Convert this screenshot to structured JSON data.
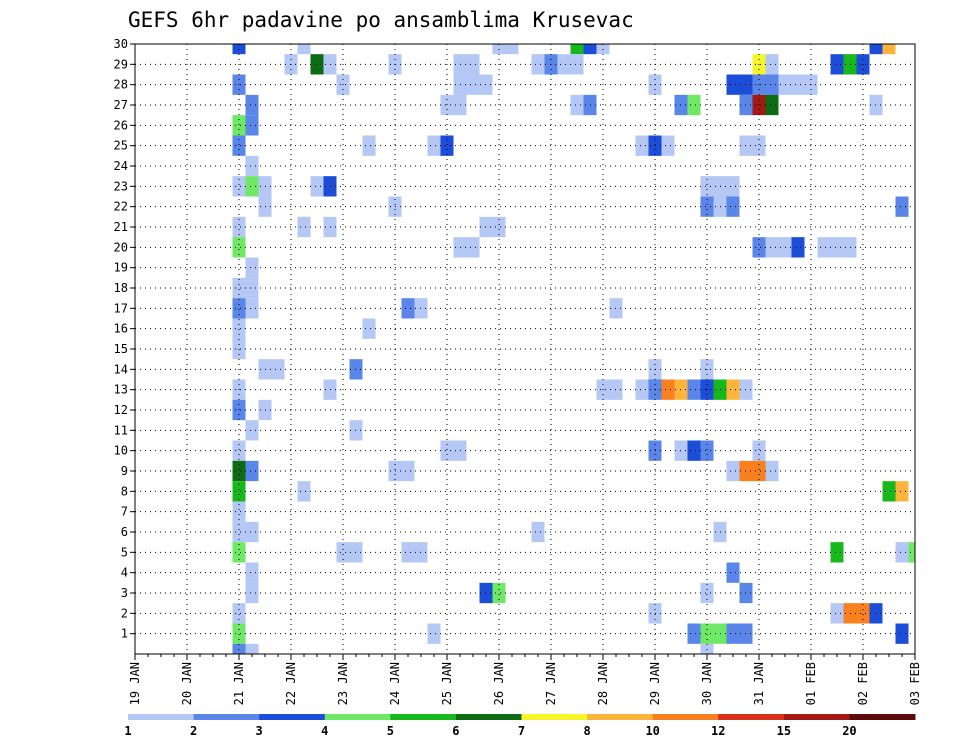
{
  "chart_data": {
    "type": "heatmap",
    "title": "GEFS 6hr padavine po ansamblima Krusevac",
    "xlabel": "",
    "ylabel": "",
    "y_ticks": [
      1,
      2,
      3,
      4,
      5,
      6,
      7,
      8,
      9,
      10,
      11,
      12,
      13,
      14,
      15,
      16,
      17,
      18,
      19,
      20,
      21,
      22,
      23,
      24,
      25,
      26,
      27,
      28,
      29,
      30
    ],
    "ylim": [
      0,
      30
    ],
    "x_ticks": [
      "19 JAN",
      "20 JAN",
      "21 JAN",
      "22 JAN",
      "23 JAN",
      "24 JAN",
      "25 JAN",
      "26 JAN",
      "27 JAN",
      "28 JAN",
      "29 JAN",
      "30 JAN",
      "31 JAN",
      "01 FEB",
      "02 FEB",
      "03 FEB"
    ],
    "x_unit": "6-hour step starting 19 JAN 00Z",
    "xlim": [
      0,
      60
    ],
    "grid": true,
    "colorbar": {
      "placement": "bottom",
      "labels": [
        "1",
        "2",
        "3",
        "4",
        "5",
        "6",
        "7",
        "8",
        "10",
        "12",
        "15",
        "20"
      ],
      "colors": [
        "#b4c7f5",
        "#5b86e9",
        "#1c4dd8",
        "#6fe865",
        "#16b81c",
        "#0d6b14",
        "#f5f52a",
        "#fcb53a",
        "#f9801e",
        "#d8331a",
        "#a31a14",
        "#5c0a0a"
      ]
    },
    "cells": [
      {
        "x": 8,
        "y": 30,
        "c": 3
      },
      {
        "x": 13,
        "y": 30,
        "c": 1
      },
      {
        "x": 28,
        "y": 30,
        "c": 1
      },
      {
        "x": 29,
        "y": 30,
        "c": 1
      },
      {
        "x": 34,
        "y": 30,
        "c": 5
      },
      {
        "x": 35,
        "y": 30,
        "c": 3
      },
      {
        "x": 36,
        "y": 30,
        "c": 1
      },
      {
        "x": 57,
        "y": 30,
        "c": 3
      },
      {
        "x": 58,
        "y": 30,
        "c": 8
      },
      {
        "x": 12,
        "y": 29,
        "c": 1
      },
      {
        "x": 14,
        "y": 29,
        "c": 6
      },
      {
        "x": 15,
        "y": 29,
        "c": 1
      },
      {
        "x": 20,
        "y": 29,
        "c": 1
      },
      {
        "x": 25,
        "y": 29,
        "c": 1
      },
      {
        "x": 26,
        "y": 29,
        "c": 1
      },
      {
        "x": 31,
        "y": 29,
        "c": 1
      },
      {
        "x": 32,
        "y": 29,
        "c": 2
      },
      {
        "x": 33,
        "y": 29,
        "c": 1
      },
      {
        "x": 34,
        "y": 29,
        "c": 1
      },
      {
        "x": 48,
        "y": 29,
        "c": 7
      },
      {
        "x": 49,
        "y": 29,
        "c": 1
      },
      {
        "x": 54,
        "y": 29,
        "c": 3
      },
      {
        "x": 55,
        "y": 29,
        "c": 5
      },
      {
        "x": 56,
        "y": 29,
        "c": 3
      },
      {
        "x": 8,
        "y": 28,
        "c": 2
      },
      {
        "x": 16,
        "y": 28,
        "c": 1
      },
      {
        "x": 25,
        "y": 28,
        "c": 1
      },
      {
        "x": 26,
        "y": 28,
        "c": 1
      },
      {
        "x": 27,
        "y": 28,
        "c": 1
      },
      {
        "x": 40,
        "y": 28,
        "c": 1
      },
      {
        "x": 46,
        "y": 28,
        "c": 3
      },
      {
        "x": 47,
        "y": 28,
        "c": 3
      },
      {
        "x": 48,
        "y": 28,
        "c": 2
      },
      {
        "x": 49,
        "y": 28,
        "c": 2
      },
      {
        "x": 50,
        "y": 28,
        "c": 1
      },
      {
        "x": 51,
        "y": 28,
        "c": 1
      },
      {
        "x": 52,
        "y": 28,
        "c": 1
      },
      {
        "x": 9,
        "y": 27,
        "c": 2
      },
      {
        "x": 24,
        "y": 27,
        "c": 1
      },
      {
        "x": 25,
        "y": 27,
        "c": 1
      },
      {
        "x": 34,
        "y": 27,
        "c": 1
      },
      {
        "x": 35,
        "y": 27,
        "c": 2
      },
      {
        "x": 42,
        "y": 27,
        "c": 2
      },
      {
        "x": 43,
        "y": 27,
        "c": 4
      },
      {
        "x": 47,
        "y": 27,
        "c": 2
      },
      {
        "x": 48,
        "y": 27,
        "c": 11
      },
      {
        "x": 49,
        "y": 27,
        "c": 6
      },
      {
        "x": 57,
        "y": 27,
        "c": 1
      },
      {
        "x": 8,
        "y": 26,
        "c": 4
      },
      {
        "x": 9,
        "y": 26,
        "c": 2
      },
      {
        "x": 8,
        "y": 25,
        "c": 2
      },
      {
        "x": 18,
        "y": 25,
        "c": 1
      },
      {
        "x": 23,
        "y": 25,
        "c": 1
      },
      {
        "x": 24,
        "y": 25,
        "c": 3
      },
      {
        "x": 39,
        "y": 25,
        "c": 1
      },
      {
        "x": 40,
        "y": 25,
        "c": 3
      },
      {
        "x": 41,
        "y": 25,
        "c": 1
      },
      {
        "x": 47,
        "y": 25,
        "c": 1
      },
      {
        "x": 48,
        "y": 25,
        "c": 1
      },
      {
        "x": 9,
        "y": 24,
        "c": 1
      },
      {
        "x": 8,
        "y": 23,
        "c": 1
      },
      {
        "x": 9,
        "y": 23,
        "c": 4
      },
      {
        "x": 10,
        "y": 23,
        "c": 1
      },
      {
        "x": 14,
        "y": 23,
        "c": 1
      },
      {
        "x": 15,
        "y": 23,
        "c": 3
      },
      {
        "x": 44,
        "y": 23,
        "c": 1
      },
      {
        "x": 45,
        "y": 23,
        "c": 1
      },
      {
        "x": 46,
        "y": 23,
        "c": 1
      },
      {
        "x": 10,
        "y": 22,
        "c": 1
      },
      {
        "x": 20,
        "y": 22,
        "c": 1
      },
      {
        "x": 44,
        "y": 22,
        "c": 2
      },
      {
        "x": 45,
        "y": 22,
        "c": 1
      },
      {
        "x": 46,
        "y": 22,
        "c": 2
      },
      {
        "x": 59,
        "y": 22,
        "c": 2
      },
      {
        "x": 8,
        "y": 21,
        "c": 1
      },
      {
        "x": 13,
        "y": 21,
        "c": 1
      },
      {
        "x": 15,
        "y": 21,
        "c": 1
      },
      {
        "x": 27,
        "y": 21,
        "c": 1
      },
      {
        "x": 28,
        "y": 21,
        "c": 1
      },
      {
        "x": 8,
        "y": 20,
        "c": 4
      },
      {
        "x": 25,
        "y": 20,
        "c": 1
      },
      {
        "x": 26,
        "y": 20,
        "c": 1
      },
      {
        "x": 48,
        "y": 20,
        "c": 2
      },
      {
        "x": 49,
        "y": 20,
        "c": 1
      },
      {
        "x": 50,
        "y": 20,
        "c": 1
      },
      {
        "x": 51,
        "y": 20,
        "c": 3
      },
      {
        "x": 53,
        "y": 20,
        "c": 1
      },
      {
        "x": 54,
        "y": 20,
        "c": 1
      },
      {
        "x": 55,
        "y": 20,
        "c": 1
      },
      {
        "x": 9,
        "y": 19,
        "c": 1
      },
      {
        "x": 8,
        "y": 18,
        "c": 1
      },
      {
        "x": 9,
        "y": 18,
        "c": 1
      },
      {
        "x": 8,
        "y": 17,
        "c": 2
      },
      {
        "x": 9,
        "y": 17,
        "c": 1
      },
      {
        "x": 21,
        "y": 17,
        "c": 2
      },
      {
        "x": 22,
        "y": 17,
        "c": 1
      },
      {
        "x": 37,
        "y": 17,
        "c": 1
      },
      {
        "x": 8,
        "y": 16,
        "c": 1
      },
      {
        "x": 18,
        "y": 16,
        "c": 1
      },
      {
        "x": 8,
        "y": 15,
        "c": 1
      },
      {
        "x": 10,
        "y": 14,
        "c": 1
      },
      {
        "x": 11,
        "y": 14,
        "c": 1
      },
      {
        "x": 17,
        "y": 14,
        "c": 2
      },
      {
        "x": 40,
        "y": 14,
        "c": 1
      },
      {
        "x": 44,
        "y": 14,
        "c": 1
      },
      {
        "x": 8,
        "y": 13,
        "c": 1
      },
      {
        "x": 15,
        "y": 13,
        "c": 1
      },
      {
        "x": 36,
        "y": 13,
        "c": 1
      },
      {
        "x": 37,
        "y": 13,
        "c": 1
      },
      {
        "x": 39,
        "y": 13,
        "c": 1
      },
      {
        "x": 40,
        "y": 13,
        "c": 2
      },
      {
        "x": 41,
        "y": 13,
        "c": 9
      },
      {
        "x": 42,
        "y": 13,
        "c": 8
      },
      {
        "x": 43,
        "y": 13,
        "c": 2
      },
      {
        "x": 44,
        "y": 13,
        "c": 3
      },
      {
        "x": 45,
        "y": 13,
        "c": 5
      },
      {
        "x": 46,
        "y": 13,
        "c": 8
      },
      {
        "x": 47,
        "y": 13,
        "c": 1
      },
      {
        "x": 8,
        "y": 12,
        "c": 2
      },
      {
        "x": 10,
        "y": 12,
        "c": 1
      },
      {
        "x": 9,
        "y": 11,
        "c": 1
      },
      {
        "x": 17,
        "y": 11,
        "c": 1
      },
      {
        "x": 8,
        "y": 10,
        "c": 1
      },
      {
        "x": 24,
        "y": 10,
        "c": 1
      },
      {
        "x": 25,
        "y": 10,
        "c": 1
      },
      {
        "x": 40,
        "y": 10,
        "c": 2
      },
      {
        "x": 42,
        "y": 10,
        "c": 1
      },
      {
        "x": 43,
        "y": 10,
        "c": 3
      },
      {
        "x": 44,
        "y": 10,
        "c": 2
      },
      {
        "x": 48,
        "y": 10,
        "c": 1
      },
      {
        "x": 8,
        "y": 9,
        "c": 6
      },
      {
        "x": 9,
        "y": 9,
        "c": 2
      },
      {
        "x": 20,
        "y": 9,
        "c": 1
      },
      {
        "x": 21,
        "y": 9,
        "c": 1
      },
      {
        "x": 46,
        "y": 9,
        "c": 1
      },
      {
        "x": 47,
        "y": 9,
        "c": 9
      },
      {
        "x": 48,
        "y": 9,
        "c": 9
      },
      {
        "x": 49,
        "y": 9,
        "c": 1
      },
      {
        "x": 8,
        "y": 8,
        "c": 5
      },
      {
        "x": 13,
        "y": 8,
        "c": 1
      },
      {
        "x": 58,
        "y": 8,
        "c": 5
      },
      {
        "x": 59,
        "y": 8,
        "c": 8
      },
      {
        "x": 8,
        "y": 7,
        "c": 1
      },
      {
        "x": 8,
        "y": 6,
        "c": 1
      },
      {
        "x": 9,
        "y": 6,
        "c": 1
      },
      {
        "x": 31,
        "y": 6,
        "c": 1
      },
      {
        "x": 45,
        "y": 6,
        "c": 1
      },
      {
        "x": 8,
        "y": 5,
        "c": 4
      },
      {
        "x": 16,
        "y": 5,
        "c": 1
      },
      {
        "x": 17,
        "y": 5,
        "c": 1
      },
      {
        "x": 21,
        "y": 5,
        "c": 1
      },
      {
        "x": 22,
        "y": 5,
        "c": 1
      },
      {
        "x": 54,
        "y": 5,
        "c": 5
      },
      {
        "x": 59,
        "y": 5,
        "c": 1
      },
      {
        "x": 60,
        "y": 5,
        "c": 4
      },
      {
        "x": 9,
        "y": 4,
        "c": 1
      },
      {
        "x": 46,
        "y": 4,
        "c": 2
      },
      {
        "x": 9,
        "y": 3,
        "c": 1
      },
      {
        "x": 27,
        "y": 3,
        "c": 3
      },
      {
        "x": 28,
        "y": 3,
        "c": 4
      },
      {
        "x": 44,
        "y": 3,
        "c": 1
      },
      {
        "x": 47,
        "y": 3,
        "c": 2
      },
      {
        "x": 8,
        "y": 2,
        "c": 1
      },
      {
        "x": 40,
        "y": 2,
        "c": 1
      },
      {
        "x": 54,
        "y": 2,
        "c": 1
      },
      {
        "x": 55,
        "y": 2,
        "c": 9
      },
      {
        "x": 56,
        "y": 2,
        "c": 9
      },
      {
        "x": 57,
        "y": 2,
        "c": 3
      },
      {
        "x": 8,
        "y": 1,
        "c": 4
      },
      {
        "x": 23,
        "y": 1,
        "c": 1
      },
      {
        "x": 43,
        "y": 1,
        "c": 2
      },
      {
        "x": 44,
        "y": 1,
        "c": 4
      },
      {
        "x": 45,
        "y": 1,
        "c": 4
      },
      {
        "x": 46,
        "y": 1,
        "c": 2
      },
      {
        "x": 47,
        "y": 1,
        "c": 2
      },
      {
        "x": 59,
        "y": 1,
        "c": 3
      },
      {
        "x": 8,
        "y": 0,
        "c": 2
      },
      {
        "x": 9,
        "y": 0,
        "c": 1
      },
      {
        "x": 44,
        "y": 0,
        "c": 1
      }
    ]
  }
}
